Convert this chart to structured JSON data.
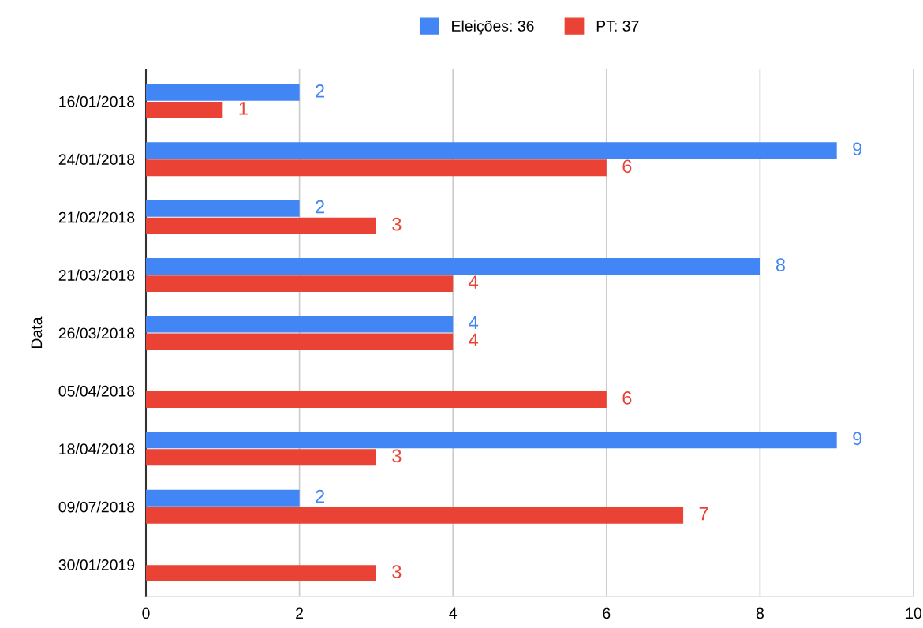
{
  "chart_data": {
    "type": "bar",
    "orientation": "horizontal",
    "ylabel": "Data",
    "categories": [
      "16/01/2018",
      "24/01/2018",
      "21/02/2018",
      "21/03/2018",
      "26/03/2018",
      "05/04/2018",
      "18/04/2018",
      "09/07/2018",
      "30/01/2019"
    ],
    "series": [
      {
        "name": "Eleições: 36",
        "color": "#4285f4",
        "values": [
          2,
          9,
          2,
          8,
          4,
          null,
          9,
          2,
          null
        ]
      },
      {
        "name": "PT: 37",
        "color": "#ea4335",
        "values": [
          1,
          6,
          3,
          4,
          4,
          6,
          3,
          7,
          3
        ]
      }
    ],
    "xlim": [
      0,
      10
    ],
    "xticks": [
      0,
      2,
      4,
      6,
      8,
      10
    ],
    "grid": "x",
    "legend": "top",
    "data_labels": true
  }
}
